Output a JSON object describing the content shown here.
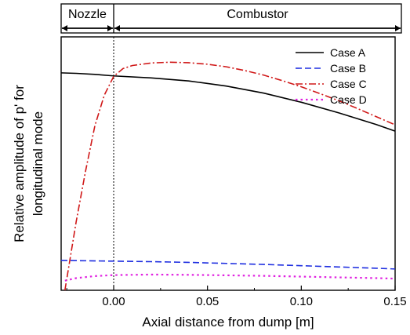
{
  "chart_data": {
    "type": "line",
    "title": "",
    "xlabel": "Axial distance from dump [m]",
    "ylabel_lines": [
      "Relative amplitude of p' for",
      "longitudinal mode"
    ],
    "xlim": [
      -0.028,
      0.15
    ],
    "ylim": [
      0,
      1
    ],
    "x_ticks": [
      0.0,
      0.05,
      0.1,
      0.15
    ],
    "x_tick_labels": [
      "0.00",
      "0.05",
      "0.10",
      "0.15"
    ],
    "y_tick_labels": [],
    "grid": false,
    "legend_position": "top-right",
    "dump_marker_x": 0.0,
    "regions": [
      {
        "label": "Nozzle",
        "x_start": -0.028,
        "x_end": 0.0
      },
      {
        "label": "Combustor",
        "x_start": 0.0,
        "x_end": 0.15
      }
    ],
    "series": [
      {
        "name": "Case A",
        "color": "#000000",
        "dash": "solid",
        "x": [
          -0.028,
          -0.02,
          -0.01,
          0.0,
          0.02,
          0.04,
          0.06,
          0.08,
          0.1,
          0.12,
          0.14,
          0.15
        ],
        "y": [
          0.858,
          0.856,
          0.852,
          0.846,
          0.838,
          0.826,
          0.806,
          0.778,
          0.742,
          0.7,
          0.654,
          0.628
        ]
      },
      {
        "name": "Case B",
        "color": "#1f2fe0",
        "dash": "dash",
        "x": [
          -0.028,
          -0.02,
          0.0,
          0.02,
          0.04,
          0.06,
          0.08,
          0.1,
          0.12,
          0.14,
          0.15
        ],
        "y": [
          0.118,
          0.117,
          0.115,
          0.113,
          0.11,
          0.106,
          0.102,
          0.097,
          0.092,
          0.087,
          0.084
        ]
      },
      {
        "name": "Case C",
        "color": "#d01818",
        "dash": "dashdot",
        "x": [
          -0.026,
          -0.02,
          -0.015,
          -0.01,
          -0.005,
          0.0,
          0.005,
          0.01,
          0.02,
          0.03,
          0.04,
          0.05,
          0.06,
          0.07,
          0.08,
          0.09,
          0.1,
          0.11,
          0.12,
          0.13,
          0.14,
          0.15
        ],
        "y": [
          0.0,
          0.27,
          0.47,
          0.65,
          0.77,
          0.844,
          0.875,
          0.887,
          0.897,
          0.9,
          0.898,
          0.892,
          0.882,
          0.867,
          0.849,
          0.827,
          0.803,
          0.776,
          0.748,
          0.717,
          0.685,
          0.653
        ]
      },
      {
        "name": "Case D",
        "color": "#e020e0",
        "dash": "dot",
        "x": [
          -0.026,
          -0.02,
          -0.01,
          0.0,
          0.02,
          0.04,
          0.06,
          0.08,
          0.1,
          0.12,
          0.14,
          0.15
        ],
        "y": [
          0.038,
          0.048,
          0.056,
          0.06,
          0.062,
          0.061,
          0.059,
          0.057,
          0.054,
          0.051,
          0.048,
          0.046
        ]
      }
    ]
  }
}
